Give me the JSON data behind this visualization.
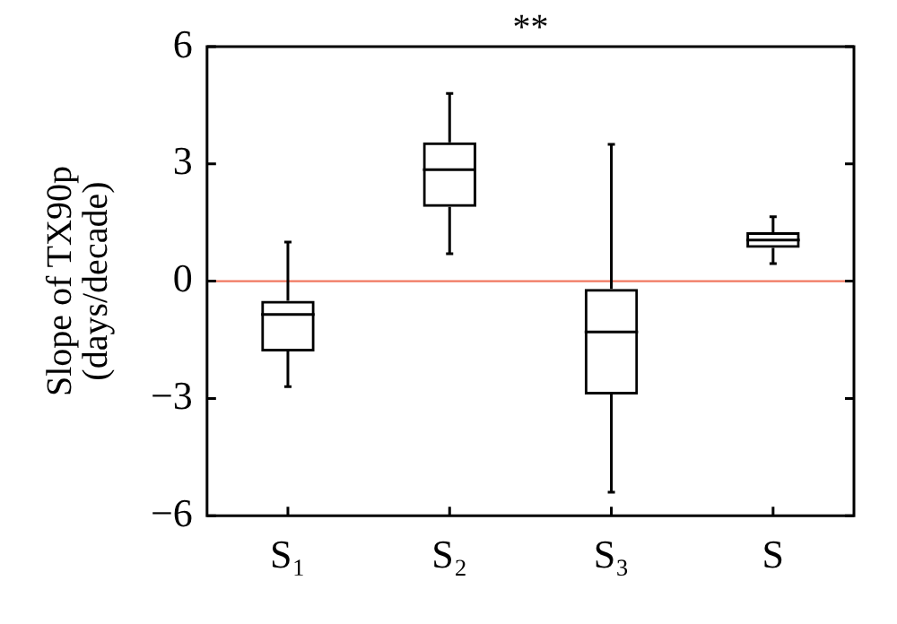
{
  "chart_data": {
    "type": "box",
    "ylabel": "Slope of TX90p\n(days/decade)",
    "categories": [
      "S₁",
      "S₂",
      "S₃",
      "S"
    ],
    "boxes": [
      {
        "low": -2.7,
        "q1": -1.8,
        "median": -0.85,
        "q3": -0.5,
        "high": 1.0
      },
      {
        "low": 0.7,
        "q1": 1.9,
        "median": 2.85,
        "q3": 3.55,
        "high": 4.8
      },
      {
        "low": -5.4,
        "q1": -2.9,
        "median": -1.3,
        "q3": -0.2,
        "high": 3.5
      },
      {
        "low": 0.45,
        "q1": 0.85,
        "median": 1.05,
        "q3": 1.25,
        "high": 1.65
      }
    ],
    "ylim": [
      -6,
      6
    ],
    "yticks": [
      6,
      3,
      0,
      -3,
      -6
    ],
    "ref_lines": [
      {
        "axis": "y",
        "value": 0,
        "color": "#f07860"
      }
    ],
    "annotations": [
      "**"
    ],
    "grid": false,
    "legend": false
  }
}
